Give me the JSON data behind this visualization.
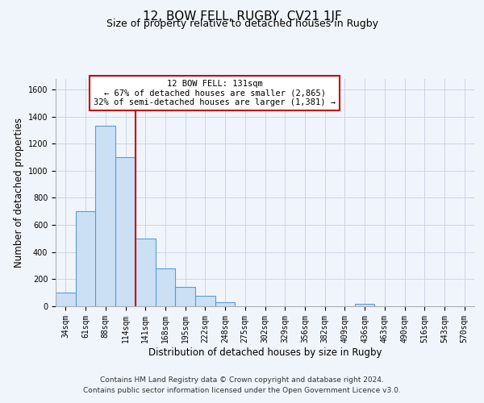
{
  "title": "12, BOW FELL, RUGBY, CV21 1JF",
  "subtitle": "Size of property relative to detached houses in Rugby",
  "xlabel": "Distribution of detached houses by size in Rugby",
  "ylabel": "Number of detached properties",
  "bin_labels": [
    "34sqm",
    "61sqm",
    "88sqm",
    "114sqm",
    "141sqm",
    "168sqm",
    "195sqm",
    "222sqm",
    "248sqm",
    "275sqm",
    "302sqm",
    "329sqm",
    "356sqm",
    "382sqm",
    "409sqm",
    "436sqm",
    "463sqm",
    "490sqm",
    "516sqm",
    "543sqm",
    "570sqm"
  ],
  "bar_values": [
    100,
    700,
    1330,
    1100,
    500,
    280,
    140,
    75,
    30,
    0,
    0,
    0,
    0,
    0,
    0,
    20,
    0,
    0,
    0,
    0,
    0
  ],
  "bar_color": "#cce0f5",
  "bar_edge_color": "#5b9bd5",
  "vline_x_index": 3.5,
  "vline_color": "#cc0000",
  "annotation_title": "12 BOW FELL: 131sqm",
  "annotation_line1": "← 67% of detached houses are smaller (2,865)",
  "annotation_line2": "32% of semi-detached houses are larger (1,381) →",
  "annotation_box_color": "#ffffff",
  "annotation_box_edge": "#cc0000",
  "ylim": [
    0,
    1680
  ],
  "yticks": [
    0,
    200,
    400,
    600,
    800,
    1000,
    1200,
    1400,
    1600
  ],
  "footer_line1": "Contains HM Land Registry data © Crown copyright and database right 2024.",
  "footer_line2": "Contains public sector information licensed under the Open Government Licence v3.0.",
  "background_color": "#f0f5fc",
  "plot_bg_color": "#f0f5fc",
  "grid_color": "#c8d0de",
  "title_fontsize": 11,
  "subtitle_fontsize": 9,
  "axis_label_fontsize": 8.5,
  "tick_fontsize": 7,
  "footer_fontsize": 6.5,
  "annotation_fontsize": 7.5
}
